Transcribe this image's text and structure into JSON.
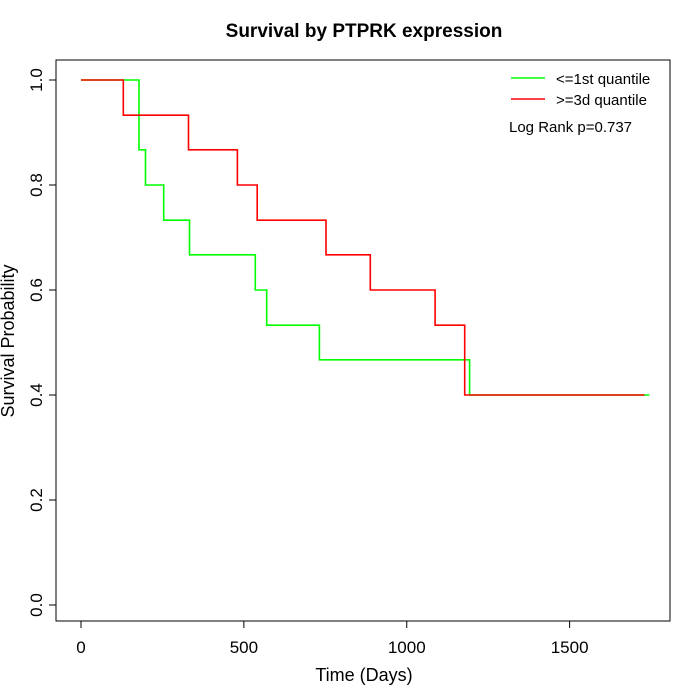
{
  "chart_data": {
    "type": "line",
    "title": "Survival by PTPRK expression",
    "xlabel": "Time (Days)",
    "ylabel": "Survival Probability",
    "xlim": [
      0,
      1800
    ],
    "ylim": [
      0,
      1.0
    ],
    "x_ticks": [
      0,
      500,
      1000,
      1500
    ],
    "y_ticks": [
      0.0,
      0.2,
      0.4,
      0.6,
      0.8,
      1.0
    ],
    "x_tick_labels": [
      "0",
      "500",
      "1000",
      "1500"
    ],
    "y_tick_labels": [
      "0.0",
      "0.2",
      "0.4",
      "0.6",
      "0.8",
      "1.0"
    ],
    "grid": false,
    "legend_position": "top-right",
    "annotation": "Log Rank p=0.737",
    "series": [
      {
        "name": "<=1st quantile",
        "color": "#00ff00",
        "step_points": [
          [
            0,
            1.0
          ],
          [
            170,
            1.0
          ],
          [
            178,
            0.867
          ],
          [
            198,
            0.8
          ],
          [
            254,
            0.733
          ],
          [
            333,
            0.667
          ],
          [
            535,
            0.6
          ],
          [
            570,
            0.533
          ],
          [
            732,
            0.467
          ],
          [
            1193,
            0.4
          ],
          [
            1745,
            0.4
          ]
        ]
      },
      {
        "name": ">=3d quantile",
        "color": "#ff0000",
        "step_points": [
          [
            0,
            1.0
          ],
          [
            130,
            0.933
          ],
          [
            330,
            0.867
          ],
          [
            480,
            0.8
          ],
          [
            541,
            0.733
          ],
          [
            752,
            0.667
          ],
          [
            888,
            0.6
          ],
          [
            1087,
            0.533
          ],
          [
            1178,
            0.4
          ],
          [
            1730,
            0.4
          ]
        ]
      }
    ]
  }
}
